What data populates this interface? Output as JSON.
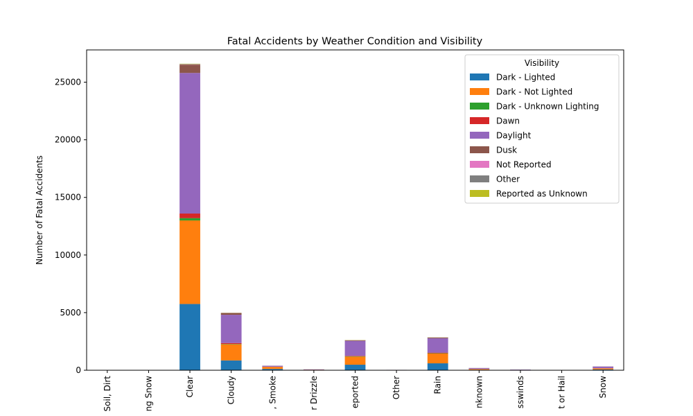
{
  "chart_data": {
    "type": "bar",
    "stacked": true,
    "title": "Fatal Accidents by Weather Condition and Visibility",
    "xlabel": "",
    "ylabel": "Number of Fatal Accidents",
    "ylim": [
      0,
      27800
    ],
    "yticks": [
      0,
      5000,
      10000,
      15000,
      20000,
      25000
    ],
    "ytick_labels": [
      "0",
      "5000",
      "10000",
      "15000",
      "20000",
      "25000"
    ],
    "grid": false,
    "legend": {
      "title": "Visibility",
      "placement": "top-right"
    },
    "categories": [
      "Blowing Sand, Soil, Dirt",
      "Blowing Snow",
      "Clear",
      "Cloudy",
      "Fog, Smog, Smoke",
      "Freezing Rain or Drizzle",
      "Not Reported",
      "Other",
      "Rain",
      "Reported as Unknown",
      "Severe Crosswinds",
      "Sleet or Hail",
      "Snow"
    ],
    "category_labels_visible": [
      "Soil, Dirt",
      "ng Snow",
      "Clear",
      "Cloudy",
      ", Smoke",
      "r Drizzle",
      "eported",
      "Other",
      "Rain",
      "nknown",
      "sswinds",
      "t or Hail",
      "Snow"
    ],
    "series": [
      {
        "name": "Dark - Lighted",
        "color": "#1f77b4",
        "values": [
          5,
          5,
          5750,
          850,
          110,
          20,
          480,
          8,
          600,
          40,
          10,
          5,
          70
        ]
      },
      {
        "name": "Dark - Not Lighted",
        "color": "#ff7f0e",
        "values": [
          8,
          10,
          7250,
          1400,
          180,
          25,
          700,
          10,
          850,
          60,
          15,
          10,
          90
        ]
      },
      {
        "name": "Dark - Unknown Lighting",
        "color": "#2ca02c",
        "values": [
          0,
          0,
          200,
          30,
          4,
          0,
          30,
          0,
          25,
          5,
          0,
          0,
          3
        ]
      },
      {
        "name": "Dawn",
        "color": "#d62728",
        "values": [
          0,
          0,
          400,
          80,
          12,
          2,
          40,
          0,
          50,
          5,
          0,
          0,
          10
        ]
      },
      {
        "name": "Daylight",
        "color": "#9467bd",
        "values": [
          15,
          12,
          12200,
          2450,
          80,
          30,
          1300,
          15,
          1250,
          80,
          30,
          8,
          150
        ]
      },
      {
        "name": "Dusk",
        "color": "#8c564b",
        "values": [
          0,
          0,
          720,
          160,
          8,
          2,
          50,
          0,
          70,
          5,
          2,
          0,
          8
        ]
      },
      {
        "name": "Not Reported",
        "color": "#e377c2",
        "values": [
          0,
          0,
          20,
          5,
          0,
          0,
          3,
          0,
          3,
          0,
          0,
          0,
          0
        ]
      },
      {
        "name": "Other",
        "color": "#7f7f7f",
        "values": [
          0,
          0,
          30,
          5,
          1,
          0,
          5,
          0,
          5,
          0,
          0,
          0,
          0
        ]
      },
      {
        "name": "Reported as Unknown",
        "color": "#bcbd22",
        "values": [
          0,
          0,
          30,
          10,
          1,
          0,
          15,
          0,
          5,
          2,
          0,
          0,
          1
        ]
      }
    ]
  }
}
